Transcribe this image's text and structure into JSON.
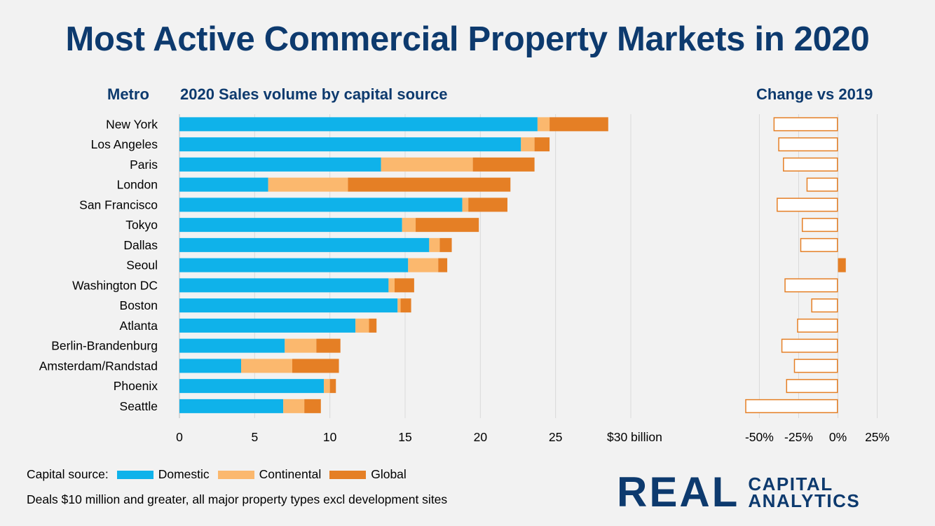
{
  "title": "Most Active Commercial Property Markets in 2020",
  "headers": {
    "metro": "Metro",
    "sales": "2020 Sales volume by capital source",
    "change": "Change vs 2019"
  },
  "legend": {
    "prefix": "Capital source:",
    "domestic": "Domestic",
    "continental": "Continental",
    "global": "Global"
  },
  "note": "Deals $10 million and greater, all major property types excl development sites",
  "logo": {
    "main": "REAL",
    "line1": "CAPITAL",
    "line2": "ANALYTICS"
  },
  "colors": {
    "domestic": "#0fb2ea",
    "continental": "#fbb86e",
    "global": "#e57f25",
    "title": "#0d3a6e"
  },
  "chart_data": [
    {
      "type": "bar",
      "orientation": "horizontal",
      "stacked": true,
      "title": "2020 Sales volume by capital source",
      "categories": [
        "New York",
        "Los Angeles",
        "Paris",
        "London",
        "San Francisco",
        "Tokyo",
        "Dallas",
        "Seoul",
        "Washington DC",
        "Boston",
        "Atlanta",
        "Berlin-Brandenburg",
        "Amsterdam/Randstad",
        "Phoenix",
        "Seattle"
      ],
      "series": [
        {
          "name": "Domestic",
          "values": [
            23.8,
            22.7,
            13.4,
            5.9,
            18.8,
            14.8,
            16.6,
            15.2,
            13.9,
            14.5,
            11.7,
            7.0,
            4.1,
            9.6,
            6.9
          ]
        },
        {
          "name": "Continental",
          "values": [
            0.8,
            0.9,
            6.1,
            5.3,
            0.4,
            0.9,
            0.7,
            2.0,
            0.4,
            0.2,
            0.9,
            2.1,
            3.4,
            0.4,
            1.4
          ]
        },
        {
          "name": "Global",
          "values": [
            3.9,
            1.0,
            4.1,
            10.8,
            2.6,
            4.2,
            0.8,
            0.6,
            1.3,
            0.7,
            0.5,
            1.6,
            3.1,
            0.4,
            1.1
          ]
        }
      ],
      "xlim": [
        0,
        30
      ],
      "xticks": [
        "0",
        "5",
        "10",
        "15",
        "20",
        "25",
        "$30 billion"
      ],
      "grid": true
    },
    {
      "type": "bar",
      "orientation": "horizontal",
      "title": "Change vs 2019",
      "categories": [
        "New York",
        "Los Angeles",
        "Paris",
        "London",
        "San Francisco",
        "Tokyo",
        "Dallas",
        "Seoul",
        "Washington DC",
        "Boston",
        "Atlanta",
        "Berlin-Brandenburg",
        "Amsterdam/Randstad",
        "Phoenix",
        "Seattle"
      ],
      "values": [
        -41,
        -38,
        -35,
        -20,
        -39,
        -23,
        -24,
        5,
        -34,
        -17,
        -26,
        -36,
        -28,
        -33,
        -59
      ],
      "xlim": [
        -60,
        35
      ],
      "xticks": [
        "-50%",
        "-25%",
        "0%",
        "25%"
      ],
      "grid": true
    }
  ]
}
